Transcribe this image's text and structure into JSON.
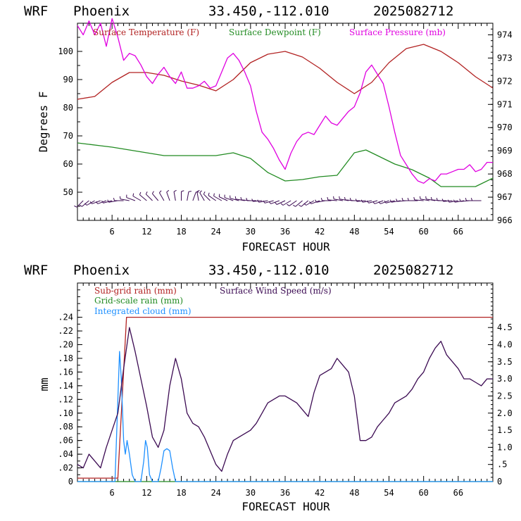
{
  "chart_data": [
    {
      "type": "line",
      "header": {
        "model": "WRF",
        "station": "Phoenix",
        "coords": "33.450,-112.010",
        "run": "2025082712"
      },
      "xlabel": "FORECAST HOUR",
      "ylabel": "Degrees F",
      "x_ticks": [
        "6",
        "12",
        "18",
        "24",
        "30",
        "36",
        "42",
        "48",
        "54",
        "60",
        "66"
      ],
      "xlim": [
        0,
        72
      ],
      "y_left": {
        "lim": [
          40,
          110
        ],
        "ticks": [
          "50",
          "60",
          "70",
          "80",
          "90",
          "100"
        ]
      },
      "y_right": {
        "lim": [
          966,
          974.5
        ],
        "ticks": [
          "966",
          "967",
          "968",
          "969",
          "970",
          "971",
          "972",
          "973",
          "974"
        ]
      },
      "series": [
        {
          "name": "Surface Temperature (F)",
          "color": "#b22222",
          "axis": "left",
          "x": [
            0,
            3,
            6,
            9,
            12,
            15,
            18,
            21,
            24,
            27,
            30,
            33,
            36,
            39,
            42,
            45,
            48,
            51,
            54,
            57,
            60,
            63,
            66,
            69,
            72
          ],
          "y": [
            83,
            84,
            89,
            92.5,
            92.5,
            91.5,
            89.5,
            88,
            86,
            90,
            96,
            99,
            100,
            98,
            94,
            89,
            85,
            89,
            96,
            101,
            102.5,
            100,
            96,
            91,
            87
          ]
        },
        {
          "name": "Surface Dewpoint (F)",
          "color": "#228b22",
          "axis": "left",
          "x": [
            0,
            2,
            4,
            6,
            9,
            12,
            15,
            18,
            21,
            24,
            27,
            30,
            33,
            36,
            39,
            42,
            45,
            48,
            50,
            52,
            55,
            58,
            61,
            63,
            66,
            69,
            72
          ],
          "y": [
            67.5,
            67,
            66.5,
            66,
            65,
            64,
            63,
            63,
            63,
            63,
            64,
            62,
            57,
            54,
            54.5,
            55.5,
            56,
            64,
            65,
            63,
            60,
            58,
            55,
            52,
            52,
            52,
            55
          ]
        },
        {
          "name": "Surface Pressure (mb)",
          "color": "#e000e0",
          "axis": "right",
          "x": [
            0,
            1,
            2,
            3,
            4,
            5,
            6,
            7,
            8,
            9,
            10,
            11,
            12,
            13,
            14,
            15,
            16,
            17,
            18,
            19,
            20,
            21,
            22,
            23,
            24,
            25,
            26,
            27,
            28,
            29,
            30,
            31,
            32,
            33,
            34,
            35,
            36,
            37,
            38,
            39,
            40,
            41,
            42,
            43,
            44,
            45,
            46,
            47,
            48,
            49,
            50,
            51,
            52,
            53,
            54,
            55,
            56,
            57,
            58,
            59,
            60,
            61,
            62,
            63,
            64,
            65,
            66,
            67,
            68,
            69,
            70,
            71,
            72
          ],
          "y": [
            974.4,
            974,
            974.6,
            974,
            974.5,
            973.5,
            974.7,
            973.9,
            972.9,
            973.2,
            973.1,
            972.7,
            972.2,
            971.9,
            972.3,
            972.6,
            972.2,
            971.9,
            972.4,
            971.7,
            971.7,
            971.8,
            972,
            971.7,
            971.8,
            972.4,
            973,
            973.2,
            972.9,
            972.4,
            971.8,
            970.7,
            969.8,
            969.5,
            969.1,
            968.6,
            968.2,
            968.9,
            969.4,
            969.7,
            969.8,
            969.7,
            970.1,
            970.5,
            970.2,
            970.1,
            970.4,
            970.7,
            970.9,
            971.5,
            972.4,
            972.7,
            972.3,
            971.9,
            970.9,
            969.8,
            968.8,
            968.4,
            968,
            967.7,
            967.6,
            967.8,
            967.7,
            968,
            968,
            968.1,
            968.2,
            968.2,
            968.4,
            968.1,
            968.2,
            968.5,
            968.5
          ]
        }
      ],
      "wind_barbs_note": "wind barbs drawn along y≈47",
      "wind_barbs_dir_deg": [
        225,
        230,
        240,
        250,
        250,
        255,
        260,
        270,
        280,
        290,
        300,
        310,
        315,
        320,
        330,
        340,
        350,
        0,
        10,
        20,
        350,
        330,
        315,
        305,
        300,
        295,
        290,
        285,
        280,
        275,
        270,
        265,
        260,
        255,
        250,
        245,
        240,
        235,
        230,
        230,
        240,
        250,
        260,
        270,
        275,
        280,
        280,
        275,
        270,
        265,
        260,
        255,
        250,
        250,
        255,
        260,
        265,
        270,
        270,
        275,
        280,
        280,
        275,
        270,
        265,
        260,
        260,
        265,
        270,
        270
      ]
    },
    {
      "type": "line",
      "header": {
        "model": "WRF",
        "station": "Phoenix",
        "coords": "33.450,-112.010",
        "run": "2025082712"
      },
      "xlabel": "FORECAST HOUR",
      "ylabel": "mm",
      "x_ticks": [
        "6",
        "12",
        "18",
        "24",
        "30",
        "36",
        "42",
        "48",
        "54",
        "60",
        "66"
      ],
      "xlim": [
        0,
        72
      ],
      "y_left": {
        "lim": [
          0,
          0.29
        ],
        "ticks": [
          "0",
          ".02",
          ".04",
          ".06",
          ".08",
          ".10",
          ".12",
          ".14",
          ".16",
          ".18",
          ".20",
          ".22",
          ".24"
        ]
      },
      "y_right": {
        "lim": [
          0,
          5.8
        ],
        "ticks": [
          "0",
          ".5",
          "1.0",
          "1.5",
          "2.0",
          "2.5",
          "3.0",
          "3.5",
          "4.0",
          "4.5"
        ]
      },
      "series": [
        {
          "name": "Sub-grid rain (mm)",
          "color": "#b22222",
          "axis": "left",
          "x": [
            0,
            7,
            8.5,
            72
          ],
          "y": [
            0.005,
            0.005,
            0.24,
            0.24
          ]
        },
        {
          "name": "Grid-scale rain (mm)",
          "color": "#228b22",
          "axis": "left",
          "x": [
            0,
            72
          ],
          "y": [
            0,
            0
          ]
        },
        {
          "name": "Integrated cloud (mm)",
          "color": "#1e90ff",
          "axis": "left",
          "x": [
            0,
            6.5,
            7,
            7.3,
            7.6,
            8,
            8.3,
            8.6,
            9,
            9.5,
            10,
            10.5,
            11,
            11.5,
            11.8,
            12.1,
            12.5,
            13,
            14,
            14.5,
            15,
            15.5,
            16,
            16.5,
            17,
            18,
            72
          ],
          "y": [
            0,
            0,
            0.12,
            0.19,
            0.15,
            0.06,
            0.04,
            0.06,
            0.04,
            0.01,
            0,
            0,
            0,
            0.03,
            0.06,
            0.05,
            0.01,
            0,
            0,
            0.02,
            0.045,
            0.048,
            0.045,
            0.02,
            0,
            0,
            0
          ]
        },
        {
          "name": "Surface Wind Speed (m/s)",
          "color": "#3b0a52",
          "axis": "right",
          "x": [
            0,
            1,
            2,
            3,
            4,
            5,
            6,
            7,
            8,
            9,
            10,
            11,
            12,
            13,
            14,
            15,
            16,
            17,
            18,
            19,
            20,
            21,
            22,
            23,
            24,
            25,
            26,
            27,
            28,
            29,
            30,
            31,
            32,
            33,
            34,
            35,
            36,
            37,
            38,
            39,
            40,
            41,
            42,
            43,
            44,
            45,
            46,
            47,
            48,
            49,
            50,
            51,
            52,
            53,
            54,
            55,
            56,
            57,
            58,
            59,
            60,
            61,
            62,
            63,
            64,
            65,
            66,
            67,
            68,
            69,
            70,
            71,
            72
          ],
          "y": [
            0.5,
            0.4,
            0.8,
            0.6,
            0.4,
            1.0,
            1.5,
            2.0,
            3.3,
            4.5,
            3.8,
            3.0,
            2.2,
            1.3,
            1.0,
            1.5,
            2.8,
            3.6,
            3.0,
            2.0,
            1.7,
            1.6,
            1.3,
            0.9,
            0.5,
            0.3,
            0.8,
            1.2,
            1.3,
            1.4,
            1.5,
            1.7,
            2.0,
            2.3,
            2.4,
            2.5,
            2.5,
            2.4,
            2.3,
            2.1,
            1.9,
            2.6,
            3.1,
            3.2,
            3.3,
            3.6,
            3.4,
            3.2,
            2.5,
            1.2,
            1.2,
            1.3,
            1.6,
            1.8,
            2.0,
            2.3,
            2.4,
            2.5,
            2.7,
            3.0,
            3.2,
            3.6,
            3.9,
            4.1,
            3.7,
            3.5,
            3.3,
            3.0,
            3.0,
            2.9,
            2.8,
            3.0,
            3.0
          ]
        }
      ]
    }
  ]
}
